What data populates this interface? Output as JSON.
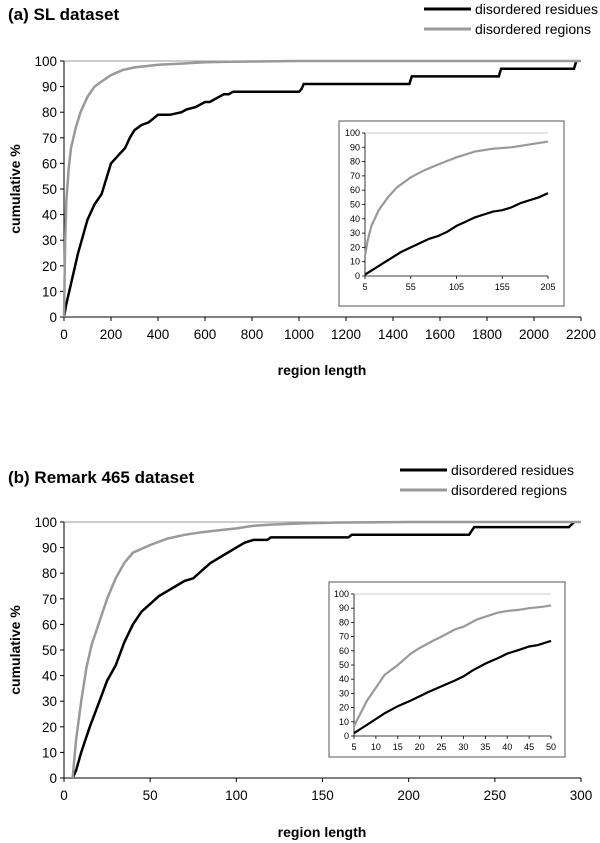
{
  "chart_data": [
    {
      "panel": "a",
      "type": "line",
      "title": "(a) SL dataset",
      "xlabel": "region length",
      "ylabel": "cumulative %",
      "xlim": [
        0,
        2200
      ],
      "ylim": [
        0,
        100
      ],
      "xticks": [
        0,
        200,
        400,
        600,
        800,
        1000,
        1200,
        1400,
        1600,
        1800,
        2000,
        2200
      ],
      "yticks": [
        0,
        10,
        20,
        30,
        40,
        50,
        60,
        70,
        80,
        90,
        100
      ],
      "legend_position": "top-right",
      "series": [
        {
          "name": "disordered residues",
          "color": "#000000",
          "x": [
            0,
            10,
            30,
            60,
            100,
            130,
            160,
            180,
            200,
            230,
            260,
            280,
            300,
            330,
            360,
            400,
            450,
            500,
            520,
            560,
            600,
            620,
            660,
            680,
            700,
            720,
            800,
            900,
            1000,
            1010,
            1020,
            1200,
            1470,
            1480,
            1700,
            1850,
            1860,
            2000,
            2170,
            2180
          ],
          "y": [
            0,
            5,
            13,
            25,
            38,
            44,
            48,
            54,
            60,
            63,
            66,
            70,
            73,
            75,
            76,
            79,
            79,
            80,
            81,
            82,
            84,
            84,
            86,
            87,
            87,
            88,
            88,
            88,
            88,
            89,
            91,
            91,
            91,
            94,
            94,
            94,
            97,
            97,
            97,
            100
          ]
        },
        {
          "name": "disordered regions",
          "color": "#999999",
          "x": [
            0,
            5,
            10,
            20,
            30,
            50,
            70,
            100,
            130,
            160,
            200,
            250,
            300,
            350,
            400,
            500,
            600,
            700,
            800,
            1000,
            2200
          ],
          "y": [
            0,
            30,
            45,
            58,
            66,
            74,
            80,
            86,
            90,
            92,
            94.5,
            96.5,
            97.5,
            98,
            98.5,
            99,
            99.5,
            99.7,
            99.8,
            100,
            100
          ]
        }
      ],
      "inset": {
        "xlim": [
          5,
          205
        ],
        "ylim": [
          0,
          100
        ],
        "xticks": [
          5,
          55,
          105,
          155,
          205
        ],
        "yticks": [
          0,
          10,
          20,
          30,
          40,
          50,
          60,
          70,
          80,
          90,
          100
        ],
        "series": [
          {
            "name": "disordered residues",
            "x": [
              5,
              15,
              25,
              35,
              45,
              55,
              65,
              75,
              85,
              95,
              105,
              115,
              125,
              135,
              145,
              155,
              165,
              175,
              185,
              195,
              205
            ],
            "y": [
              1,
              5,
              9,
              13,
              17,
              20,
              23,
              26,
              28,
              31,
              35,
              38,
              41,
              43,
              45,
              46,
              48,
              51,
              53,
              55,
              58
            ]
          },
          {
            "name": "disordered regions",
            "x": [
              5,
              8,
              12,
              20,
              30,
              40,
              55,
              70,
              85,
              105,
              125,
              145,
              165,
              185,
              205
            ],
            "y": [
              14,
              25,
              35,
              46,
              55,
              62,
              69,
              74,
              78,
              83,
              87,
              89,
              90,
              92,
              94
            ]
          }
        ]
      }
    },
    {
      "panel": "b",
      "type": "line",
      "title": "(b) Remark 465 dataset",
      "xlabel": "region length",
      "ylabel": "cumulative %",
      "xlim": [
        0,
        300
      ],
      "ylim": [
        0,
        100
      ],
      "xticks": [
        0,
        50,
        100,
        150,
        200,
        250,
        300
      ],
      "yticks": [
        0,
        10,
        20,
        30,
        40,
        50,
        60,
        70,
        80,
        90,
        100
      ],
      "legend_position": "top-right",
      "series": [
        {
          "name": "disordered residues",
          "color": "#000000",
          "x": [
            5,
            7,
            10,
            15,
            20,
            25,
            30,
            35,
            40,
            45,
            50,
            55,
            60,
            65,
            70,
            75,
            80,
            85,
            90,
            95,
            100,
            105,
            110,
            118,
            120,
            165,
            167,
            235,
            238,
            293,
            296
          ],
          "y": [
            0,
            3,
            10,
            20,
            29,
            38,
            44,
            53,
            60,
            65,
            68,
            71,
            73,
            75,
            77,
            78,
            81,
            84,
            86,
            88,
            90,
            92,
            93,
            93,
            94,
            94,
            95,
            95,
            98,
            98,
            100
          ]
        },
        {
          "name": "disordered regions",
          "color": "#999999",
          "x": [
            5,
            7,
            10,
            13,
            16,
            20,
            25,
            30,
            35,
            40,
            50,
            60,
            70,
            80,
            90,
            100,
            110,
            120,
            140,
            160,
            200,
            300
          ],
          "y": [
            0,
            15,
            30,
            43,
            52,
            60,
            70,
            78,
            84,
            88,
            91,
            93.5,
            95,
            96,
            96.8,
            97.5,
            98.5,
            99,
            99.5,
            99.8,
            100,
            100
          ]
        }
      ],
      "inset": {
        "xlim": [
          5,
          50
        ],
        "ylim": [
          0,
          100
        ],
        "xticks": [
          5,
          10,
          15,
          20,
          25,
          30,
          35,
          40,
          45,
          50
        ],
        "yticks": [
          0,
          10,
          20,
          30,
          40,
          50,
          60,
          70,
          80,
          90,
          100
        ],
        "series": [
          {
            "name": "disordered residues",
            "x": [
              5,
              7,
              10,
              12,
              15,
              18,
              20,
              22,
              25,
              28,
              30,
              32,
              35,
              38,
              40,
              43,
              45,
              47,
              50
            ],
            "y": [
              2,
              6,
              12,
              16,
              21,
              25,
              28,
              31,
              35,
              39,
              42,
              46,
              51,
              55,
              58,
              61,
              63,
              64,
              67
            ]
          },
          {
            "name": "disordered regions",
            "x": [
              5,
              6,
              8,
              10,
              12,
              15,
              18,
              20,
              23,
              25,
              28,
              30,
              33,
              35,
              38,
              40,
              43,
              45,
              48,
              50
            ],
            "y": [
              7,
              13,
              25,
              34,
              43,
              50,
              58,
              62,
              67,
              70,
              75,
              77,
              82,
              84,
              87,
              88,
              89,
              90,
              91,
              92
            ]
          }
        ]
      }
    }
  ]
}
